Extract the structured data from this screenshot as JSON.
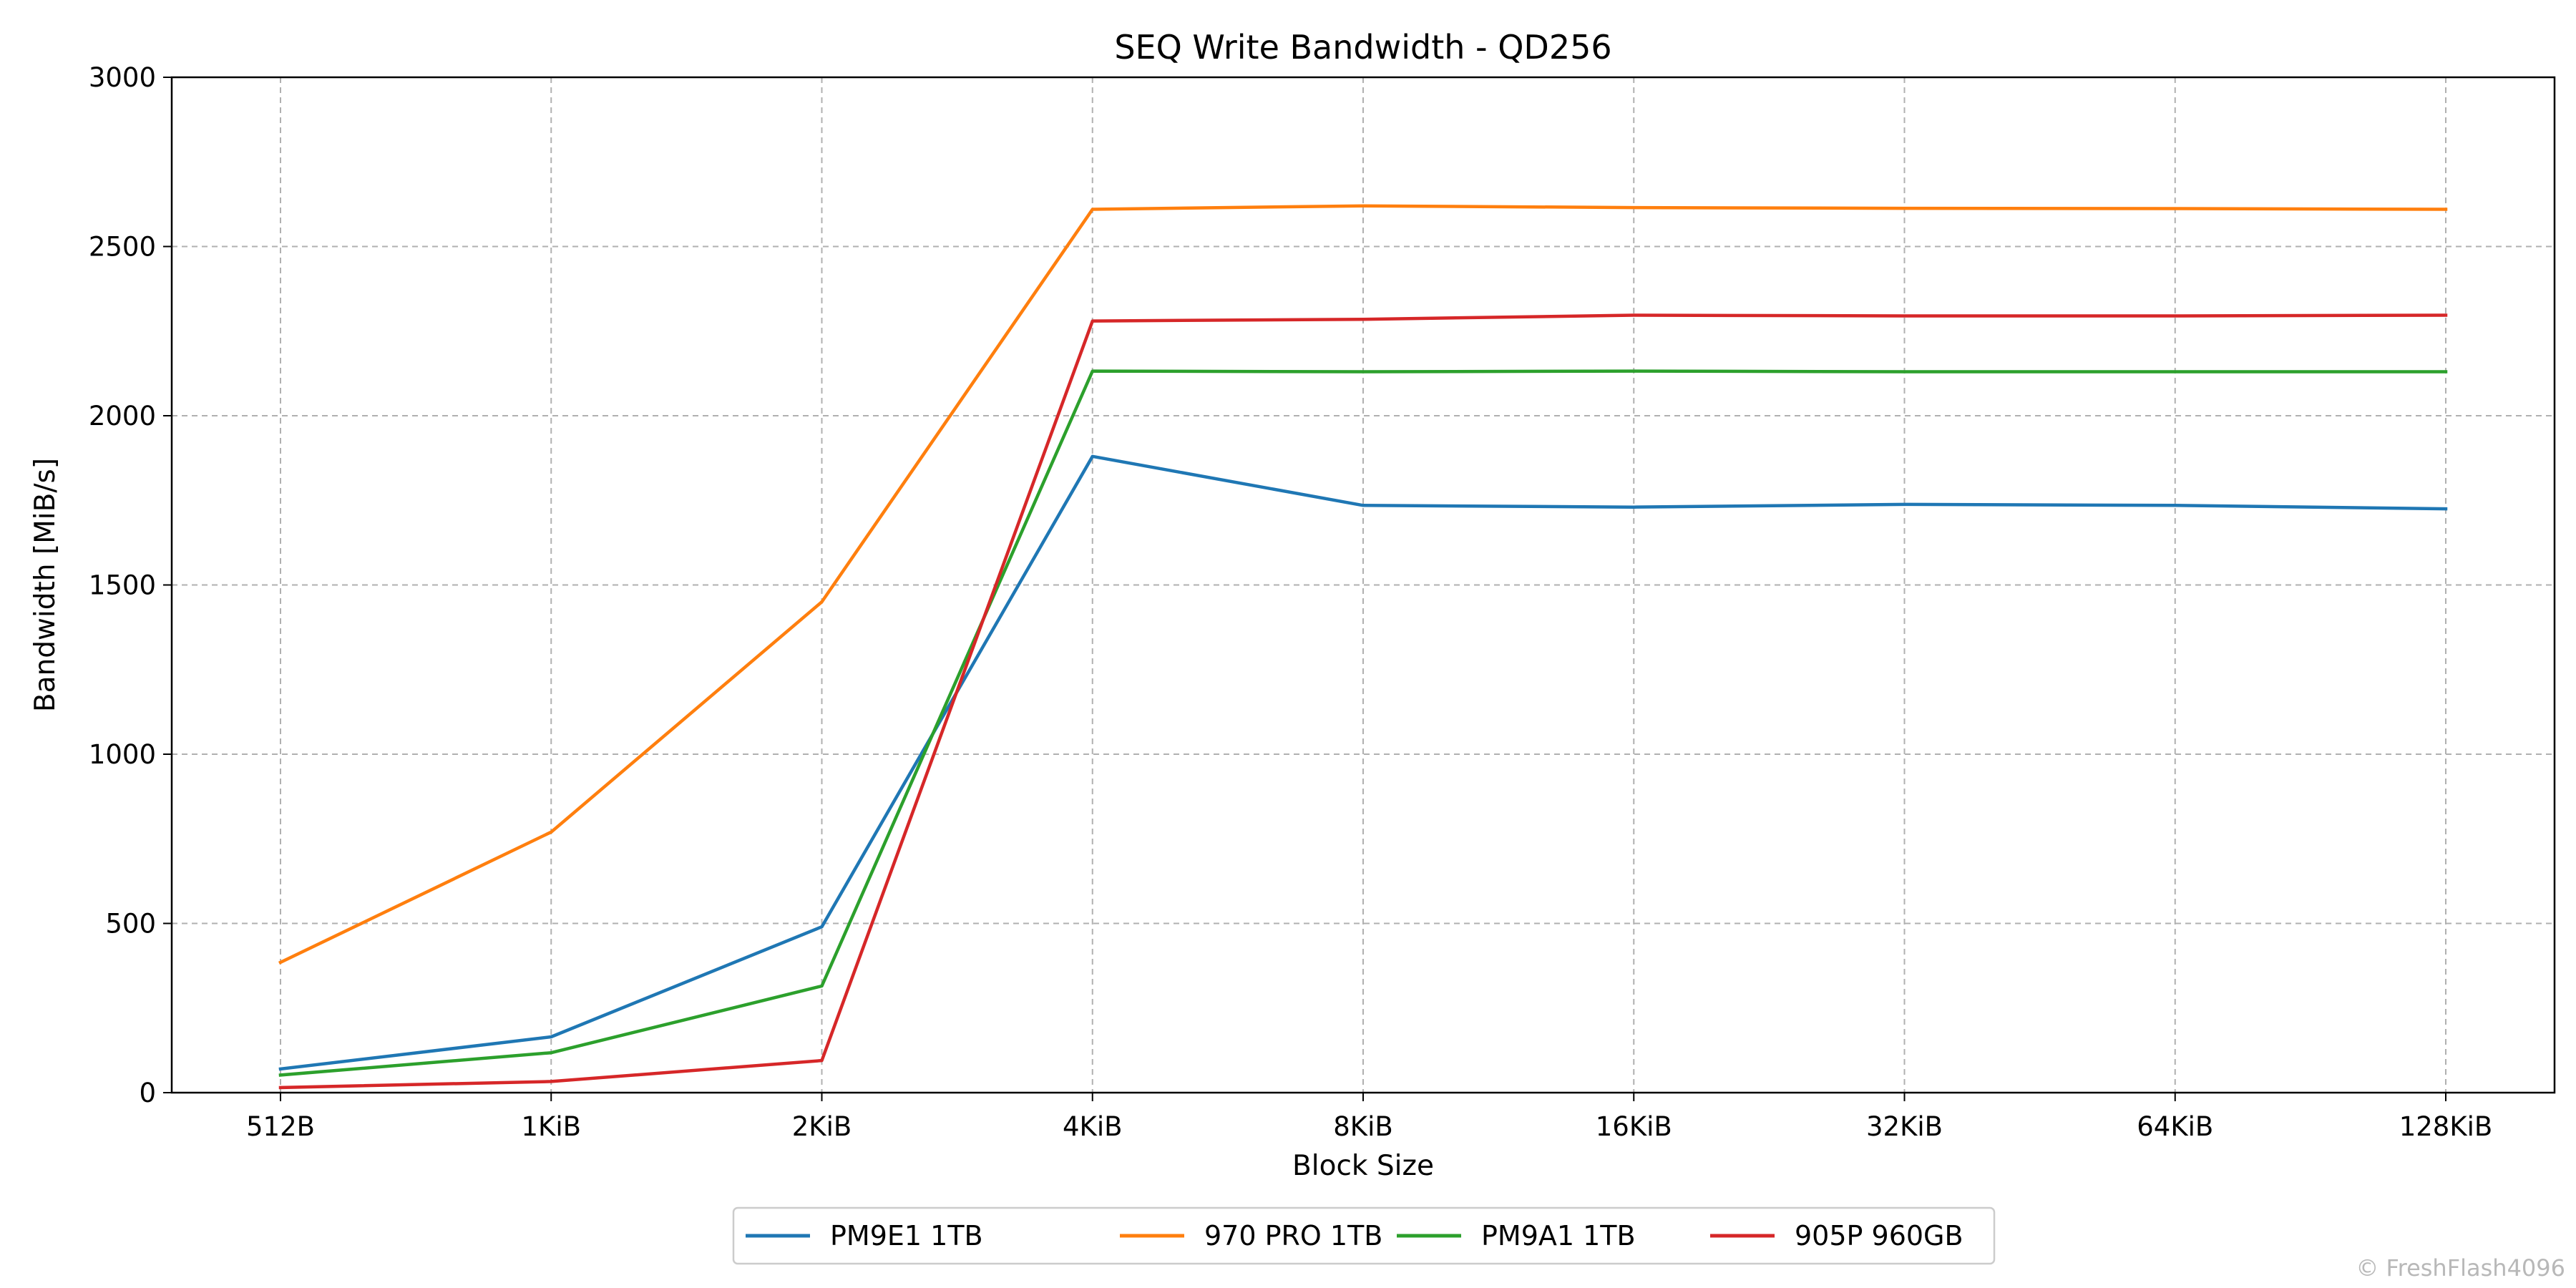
{
  "chart_data": {
    "type": "line",
    "title": "SEQ Write Bandwidth - QD256",
    "xlabel": "Block Size",
    "ylabel": "Bandwidth [MiB/s]",
    "categories": [
      "512B",
      "1KiB",
      "2KiB",
      "4KiB",
      "8KiB",
      "16KiB",
      "32KiB",
      "64KiB",
      "128KiB"
    ],
    "ylim": [
      0,
      3000
    ],
    "yticks": [
      0,
      500,
      1000,
      1500,
      2000,
      2500,
      3000
    ],
    "grid": true,
    "legend_position": "bottom-center",
    "series": [
      {
        "name": "PM9E1 1TB",
        "color": "#1f77b4",
        "values": [
          70,
          165,
          490,
          1880,
          1735,
          1730,
          1738,
          1735,
          1725
        ]
      },
      {
        "name": "970 PRO 1TB",
        "color": "#ff7f0e",
        "values": [
          385,
          770,
          1450,
          2610,
          2620,
          2615,
          2613,
          2612,
          2610
        ]
      },
      {
        "name": "PM9A1 1TB",
        "color": "#2ca02c",
        "values": [
          52,
          118,
          315,
          2132,
          2130,
          2132,
          2130,
          2130,
          2130
        ]
      },
      {
        "name": "905P 960GB",
        "color": "#d62728",
        "values": [
          15,
          33,
          95,
          2280,
          2285,
          2297,
          2295,
          2295,
          2297
        ]
      }
    ]
  },
  "watermark": "© FreshFlash4096"
}
